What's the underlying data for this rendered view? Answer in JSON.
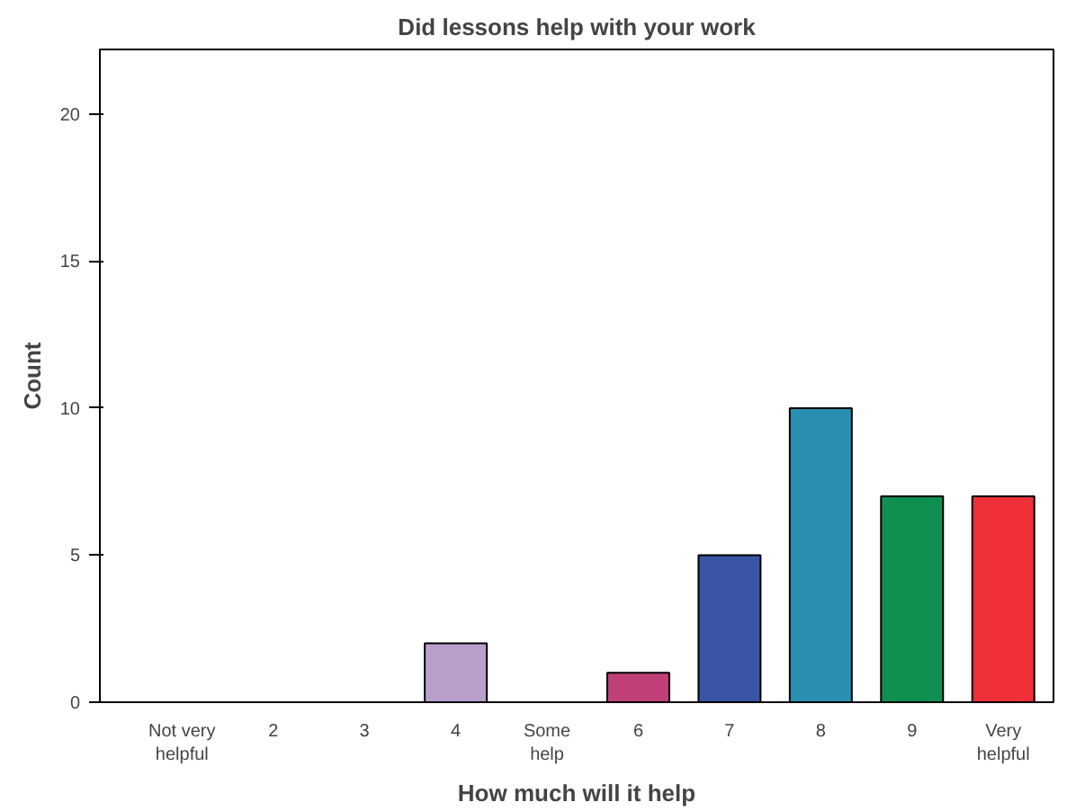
{
  "chart_data": {
    "type": "bar",
    "title": "Did lessons help with your work",
    "xlabel": "How much will it help",
    "ylabel": "Count",
    "categories": [
      "Not very helpful",
      "2",
      "3",
      "4",
      "Some help",
      "6",
      "7",
      "8",
      "9",
      "Very helpful"
    ],
    "values": [
      0,
      0,
      0,
      2,
      0,
      1,
      5,
      10,
      7,
      7
    ],
    "colors": [
      "#000000",
      "#000000",
      "#000000",
      "#b89fcc",
      "#000000",
      "#c0407a",
      "#3a55a4",
      "#2a8fb0",
      "#0f9050",
      "#f03038"
    ],
    "ylim": [
      0,
      22.2
    ],
    "yticks": [
      0,
      5,
      10,
      15,
      20
    ],
    "grid": false
  }
}
